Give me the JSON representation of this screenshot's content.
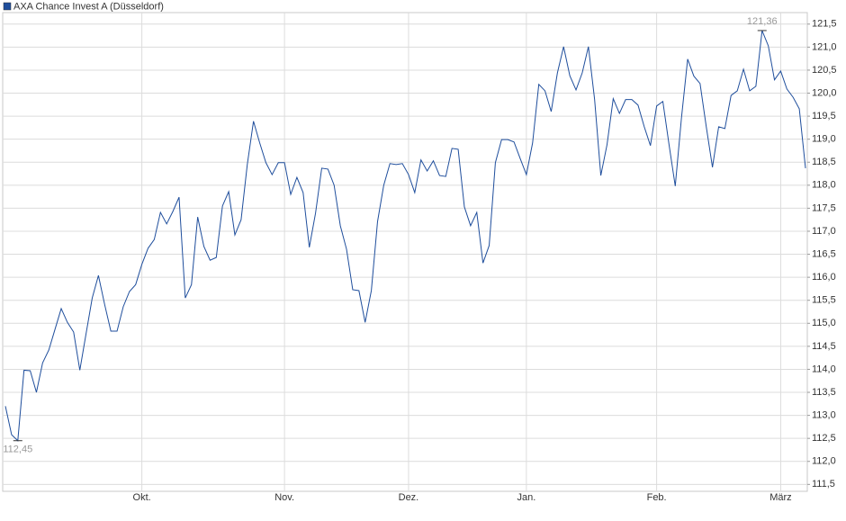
{
  "chart_data": {
    "type": "line",
    "series": [
      {
        "name": "AXA Chance Invest A (Düsseldorf)",
        "color": "#1f4e9c",
        "values": [
          113.2,
          112.58,
          112.45,
          113.98,
          113.97,
          113.5,
          114.14,
          114.42,
          114.87,
          115.32,
          115.02,
          114.81,
          113.98,
          114.77,
          115.55,
          116.04,
          115.41,
          114.83,
          114.83,
          115.36,
          115.69,
          115.84,
          116.28,
          116.63,
          116.82,
          117.41,
          117.16,
          117.43,
          117.74,
          115.55,
          115.84,
          117.31,
          116.67,
          116.37,
          116.43,
          117.55,
          117.86,
          116.92,
          117.25,
          118.45,
          119.39,
          118.92,
          118.49,
          118.23,
          118.49,
          118.49,
          117.8,
          118.17,
          117.84,
          116.65,
          117.39,
          118.37,
          118.35,
          118.0,
          117.12,
          116.61,
          115.73,
          115.71,
          115.02,
          115.71,
          117.21,
          118.0,
          118.47,
          118.45,
          118.47,
          118.23,
          117.84,
          118.55,
          118.31,
          118.53,
          118.21,
          118.19,
          118.8,
          118.78,
          117.53,
          117.12,
          117.41,
          116.31,
          116.69,
          118.49,
          118.99,
          118.99,
          118.94,
          118.58,
          118.23,
          118.92,
          120.19,
          120.05,
          119.6,
          120.44,
          121.01,
          120.38,
          120.07,
          120.44,
          121.01,
          119.86,
          118.21,
          118.88,
          119.88,
          119.56,
          119.86,
          119.86,
          119.74,
          119.27,
          118.86,
          119.72,
          119.82,
          118.88,
          117.98,
          119.46,
          120.74,
          120.37,
          120.21,
          119.27,
          118.39,
          119.27,
          119.23,
          119.95,
          120.05,
          120.52,
          120.05,
          120.15,
          121.36,
          121.03,
          120.29,
          120.48,
          120.09,
          119.91,
          119.66,
          118.37
        ],
        "value_labels": [
          null,
          null,
          "112,45",
          null,
          null,
          null,
          null,
          null,
          null,
          null,
          null,
          null,
          null,
          null,
          null,
          null,
          null,
          null,
          null,
          null,
          null,
          null,
          null,
          null,
          null,
          null,
          null,
          null,
          null,
          null,
          null,
          null,
          null,
          null,
          null,
          null,
          null,
          null,
          null,
          null,
          null,
          null,
          null,
          null,
          null,
          null,
          null,
          null,
          null,
          null,
          null,
          null,
          null,
          null,
          null,
          null,
          null,
          null,
          null,
          null,
          null,
          null,
          null,
          null,
          null,
          null,
          null,
          null,
          null,
          null,
          null,
          null,
          null,
          null,
          null,
          null,
          null,
          null,
          null,
          null,
          null,
          null,
          null,
          null,
          null,
          null,
          null,
          null,
          null,
          null,
          null,
          null,
          null,
          null,
          null,
          null,
          null,
          null,
          null,
          null,
          null,
          null,
          null,
          null,
          null,
          null,
          null,
          null,
          null,
          null,
          null,
          null,
          null,
          null,
          null,
          null,
          null,
          null,
          null,
          null,
          null,
          null,
          "121,36",
          null,
          null,
          null,
          null,
          null,
          null,
          null
        ]
      }
    ],
    "categories": [
      null,
      null,
      null,
      null,
      null,
      null,
      null,
      null,
      null,
      null,
      null,
      null,
      null,
      null,
      null,
      null,
      null,
      null,
      null,
      null,
      null,
      null,
      "Okt.",
      null,
      null,
      null,
      null,
      null,
      null,
      null,
      null,
      null,
      null,
      null,
      null,
      null,
      null,
      null,
      null,
      null,
      null,
      null,
      null,
      null,
      null,
      "Nov.",
      null,
      null,
      null,
      null,
      null,
      null,
      null,
      null,
      null,
      null,
      null,
      null,
      null,
      null,
      null,
      null,
      null,
      null,
      null,
      "Dez.",
      null,
      null,
      null,
      null,
      null,
      null,
      null,
      null,
      null,
      null,
      null,
      null,
      null,
      null,
      null,
      null,
      null,
      null,
      "Jan.",
      null,
      null,
      null,
      null,
      null,
      null,
      null,
      null,
      null,
      null,
      null,
      null,
      null,
      null,
      null,
      null,
      null,
      null,
      null,
      null,
      "Feb.",
      null,
      null,
      null,
      null,
      null,
      null,
      null,
      null,
      null,
      null,
      null,
      null,
      null,
      null,
      null,
      null,
      null,
      null,
      null,
      "März",
      null,
      null,
      null,
      null
    ],
    "ylim": [
      111.35,
      121.75
    ],
    "yticks": [
      {
        "value": 111.5,
        "label": "111,5"
      },
      {
        "value": 112.0,
        "label": "112,0"
      },
      {
        "value": 112.5,
        "label": "112,5"
      },
      {
        "value": 113.0,
        "label": "113,0"
      },
      {
        "value": 113.5,
        "label": "113,5"
      },
      {
        "value": 114.0,
        "label": "114,0"
      },
      {
        "value": 114.5,
        "label": "114,5"
      },
      {
        "value": 115.0,
        "label": "115,0"
      },
      {
        "value": 115.5,
        "label": "115,5"
      },
      {
        "value": 116.0,
        "label": "116,0"
      },
      {
        "value": 116.5,
        "label": "116,5"
      },
      {
        "value": 117.0,
        "label": "117,0"
      },
      {
        "value": 117.5,
        "label": "117,5"
      },
      {
        "value": 118.0,
        "label": "118,0"
      },
      {
        "value": 118.5,
        "label": "118,5"
      },
      {
        "value": 119.0,
        "label": "119,0"
      },
      {
        "value": 119.5,
        "label": "119,5"
      },
      {
        "value": 120.0,
        "label": "120,0"
      },
      {
        "value": 120.5,
        "label": "120,5"
      },
      {
        "value": 121.0,
        "label": "121,0"
      },
      {
        "value": 121.5,
        "label": "121,5"
      }
    ],
    "grid": true,
    "legend": "top-left"
  }
}
